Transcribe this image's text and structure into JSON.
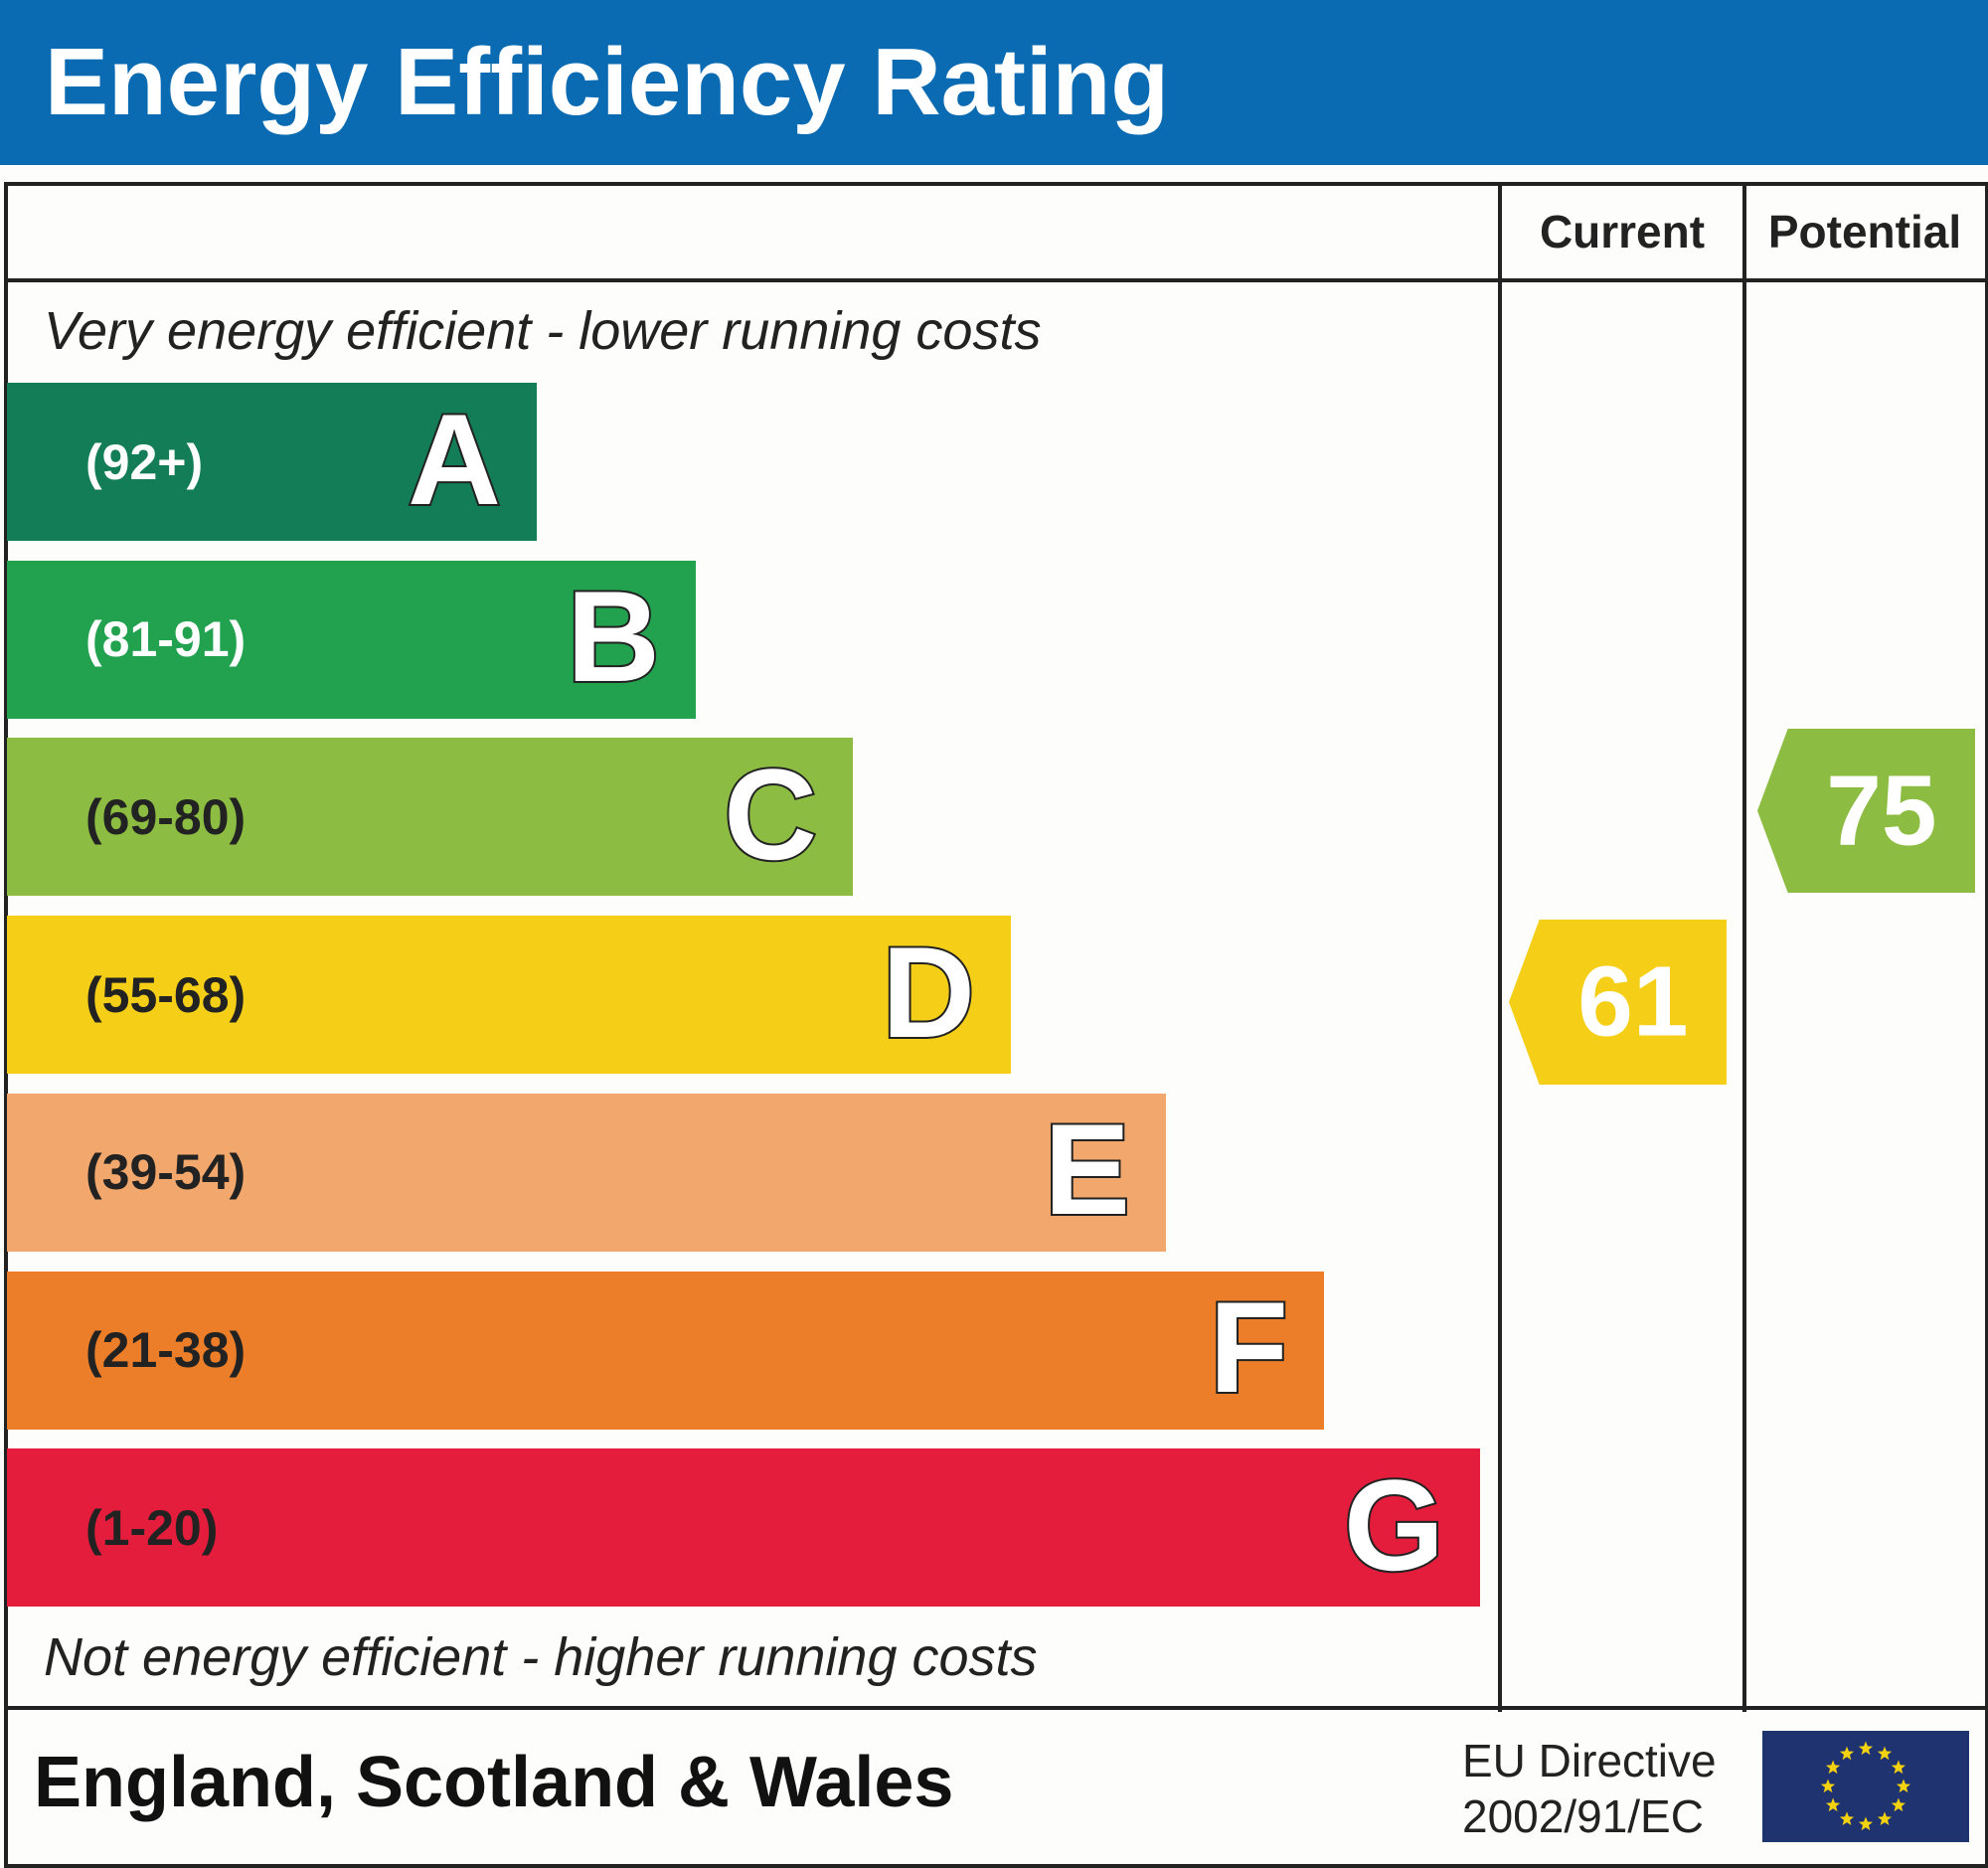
{
  "title": "Energy Efficiency Rating",
  "columns": {
    "current": "Current",
    "potential": "Potential"
  },
  "top_note": "Very energy efficient - lower running costs",
  "bottom_note": "Not energy efficient - higher running costs",
  "footer": {
    "region": "England, Scotland & Wales",
    "directive_line1": "EU Directive",
    "directive_line2": "2002/91/EC",
    "flag_icon": "eu-flag-icon"
  },
  "colors": {
    "header": "#0a6ab2",
    "A": "#127d56",
    "B": "#22a24f",
    "C": "#8cbd42",
    "D": "#f5cf17",
    "E": "#f2a86c",
    "F": "#ec7e2a",
    "G": "#e31d3b"
  },
  "chart_data": {
    "type": "bar",
    "title": "Energy Efficiency Rating",
    "bands": [
      {
        "letter": "A",
        "range": "(92+)",
        "color": "#127d56",
        "text_color": "#ffffff"
      },
      {
        "letter": "B",
        "range": "(81-91)",
        "color": "#22a24f",
        "text_color": "#ffffff"
      },
      {
        "letter": "C",
        "range": "(69-80)",
        "color": "#8cbd42",
        "text_color": "#222222"
      },
      {
        "letter": "D",
        "range": "(55-68)",
        "color": "#f5cf17",
        "text_color": "#222222"
      },
      {
        "letter": "E",
        "range": "(39-54)",
        "color": "#f2a86c",
        "text_color": "#222222"
      },
      {
        "letter": "F",
        "range": "(21-38)",
        "color": "#ec7e2a",
        "text_color": "#222222"
      },
      {
        "letter": "G",
        "range": "(1-20)",
        "color": "#e31d3b",
        "text_color": "#222222"
      }
    ],
    "current": {
      "value": "61",
      "band": "D",
      "color": "#f5cf17"
    },
    "potential": {
      "value": "75",
      "band": "C",
      "color": "#8cbd42"
    }
  }
}
